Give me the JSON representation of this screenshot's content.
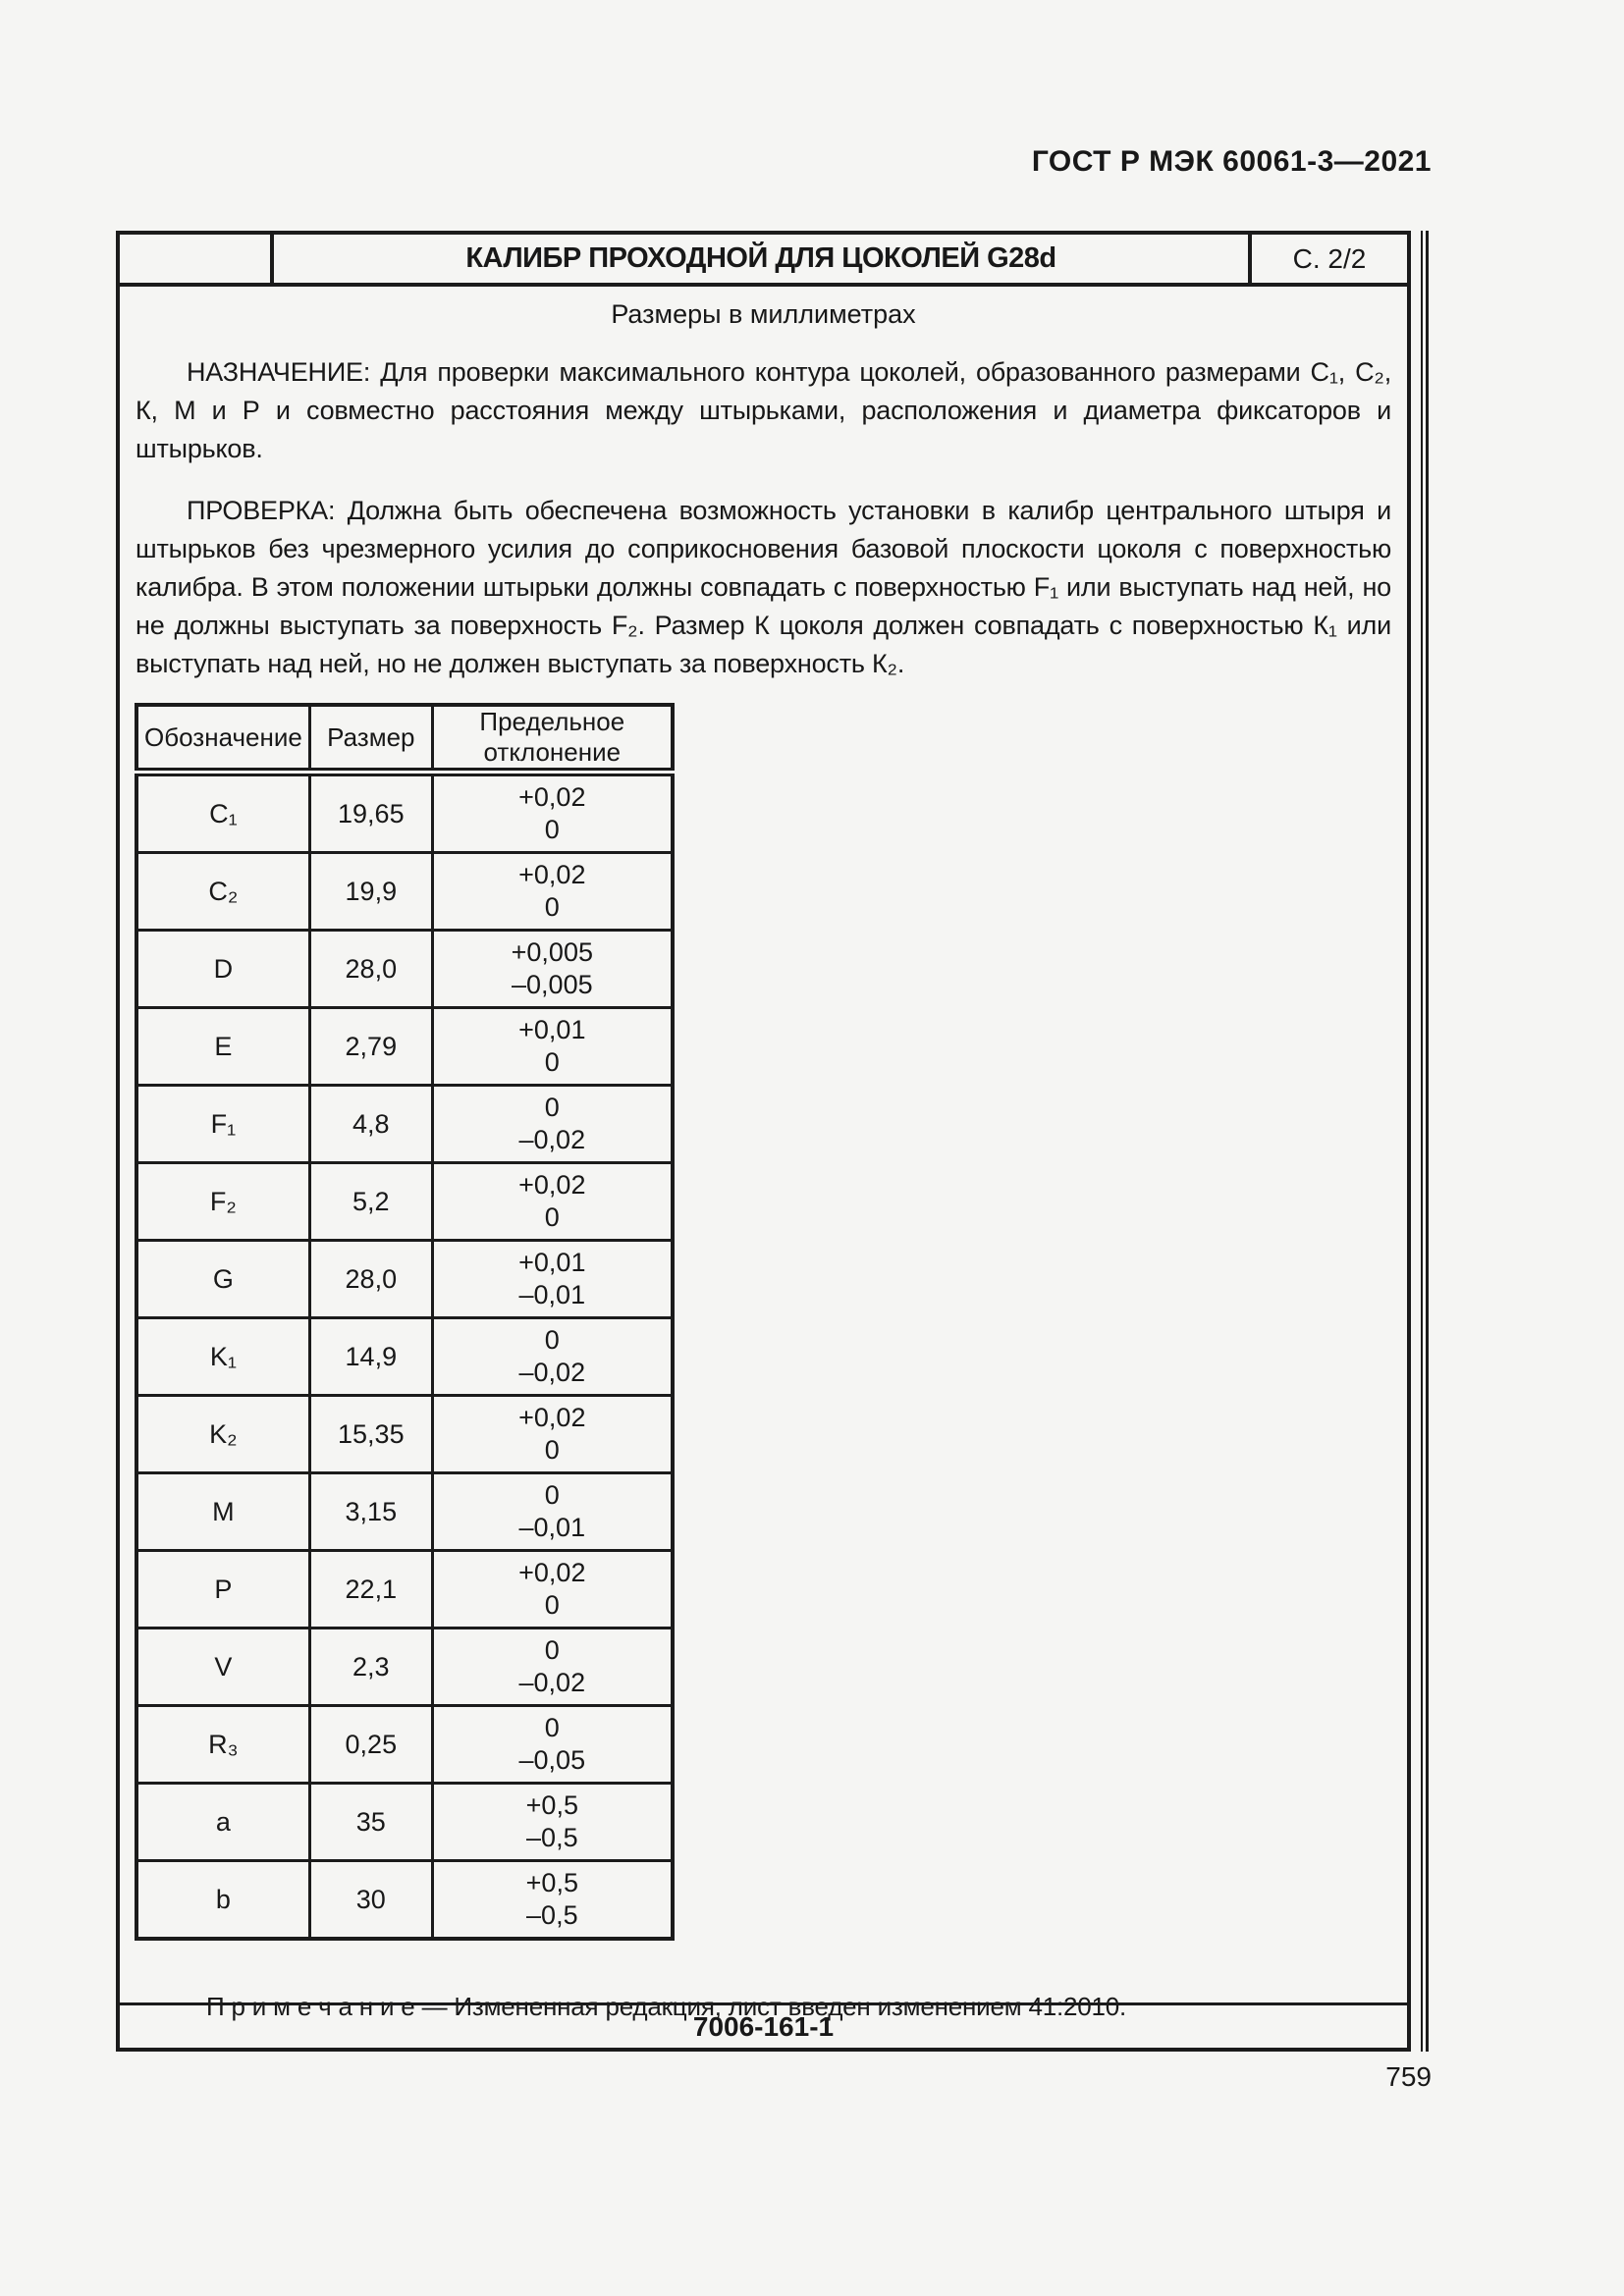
{
  "page": {
    "doc_code": "ГОСТ Р МЭК 60061-3—2021",
    "page_number": "759"
  },
  "sheet": {
    "title": "КАЛИБР ПРОХОДНОЙ ДЛЯ ЦОКОЛЕЙ G28d",
    "sheet_ref": "С. 2/2",
    "units_note": "Размеры в миллиметрах",
    "purpose": "НАЗНАЧЕНИЕ: Для проверки максимального контура цоколей, образованного размерами С₁, С₂, К, М и Р и совместно расстояния между штырьками, расположения и диаметра фиксаторов и штырьков.",
    "check": "ПРОВЕРКА: Должна быть обеспечена возможность установки в калибр центрального штыря и штырьков без чрезмерного усилия до соприкосновения базовой плоскости цоколя с поверхностью калибра. В этом положении штырьки должны совпадать с поверхностью F₁ или выступать над ней, но не должны выступать за поверхность F₂. Размер К цоколя должен совпадать с поверхностью К₁ или выступать над ней, но не должен выступать за поверхность К₂.",
    "note": "П р и м е ч а н и е — Измененная редакция, лист введен изменением 41:2010.",
    "drawing_number": "7006-161-1"
  },
  "table": {
    "headers": [
      "Обозначение",
      "Размер",
      "Предельное отклонение"
    ],
    "rows": [
      {
        "label": "C₁",
        "size": "19,65",
        "dev_upper": "+0,02",
        "dev_lower": "0"
      },
      {
        "label": "C₂",
        "size": "19,9",
        "dev_upper": "+0,02",
        "dev_lower": "0"
      },
      {
        "label": "D",
        "size": "28,0",
        "dev_upper": "+0,005",
        "dev_lower": "–0,005"
      },
      {
        "label": "E",
        "size": "2,79",
        "dev_upper": "+0,01",
        "dev_lower": "0"
      },
      {
        "label": "F₁",
        "size": "4,8",
        "dev_upper": "0",
        "dev_lower": "–0,02"
      },
      {
        "label": "F₂",
        "size": "5,2",
        "dev_upper": "+0,02",
        "dev_lower": "0"
      },
      {
        "label": "G",
        "size": "28,0",
        "dev_upper": "+0,01",
        "dev_lower": "–0,01"
      },
      {
        "label": "K₁",
        "size": "14,9",
        "dev_upper": "0",
        "dev_lower": "–0,02"
      },
      {
        "label": "K₂",
        "size": "15,35",
        "dev_upper": "+0,02",
        "dev_lower": "0"
      },
      {
        "label": "M",
        "size": "3,15",
        "dev_upper": "0",
        "dev_lower": "–0,01"
      },
      {
        "label": "P",
        "size": "22,1",
        "dev_upper": "+0,02",
        "dev_lower": "0"
      },
      {
        "label": "V",
        "size": "2,3",
        "dev_upper": "0",
        "dev_lower": "–0,02"
      },
      {
        "label": "R₃",
        "size": "0,25",
        "dev_upper": "0",
        "dev_lower": "–0,05"
      },
      {
        "label": "a",
        "size": "35",
        "dev_upper": "+0,5",
        "dev_lower": "–0,5"
      },
      {
        "label": "b",
        "size": "30",
        "dev_upper": "+0,5",
        "dev_lower": "–0,5"
      }
    ]
  }
}
